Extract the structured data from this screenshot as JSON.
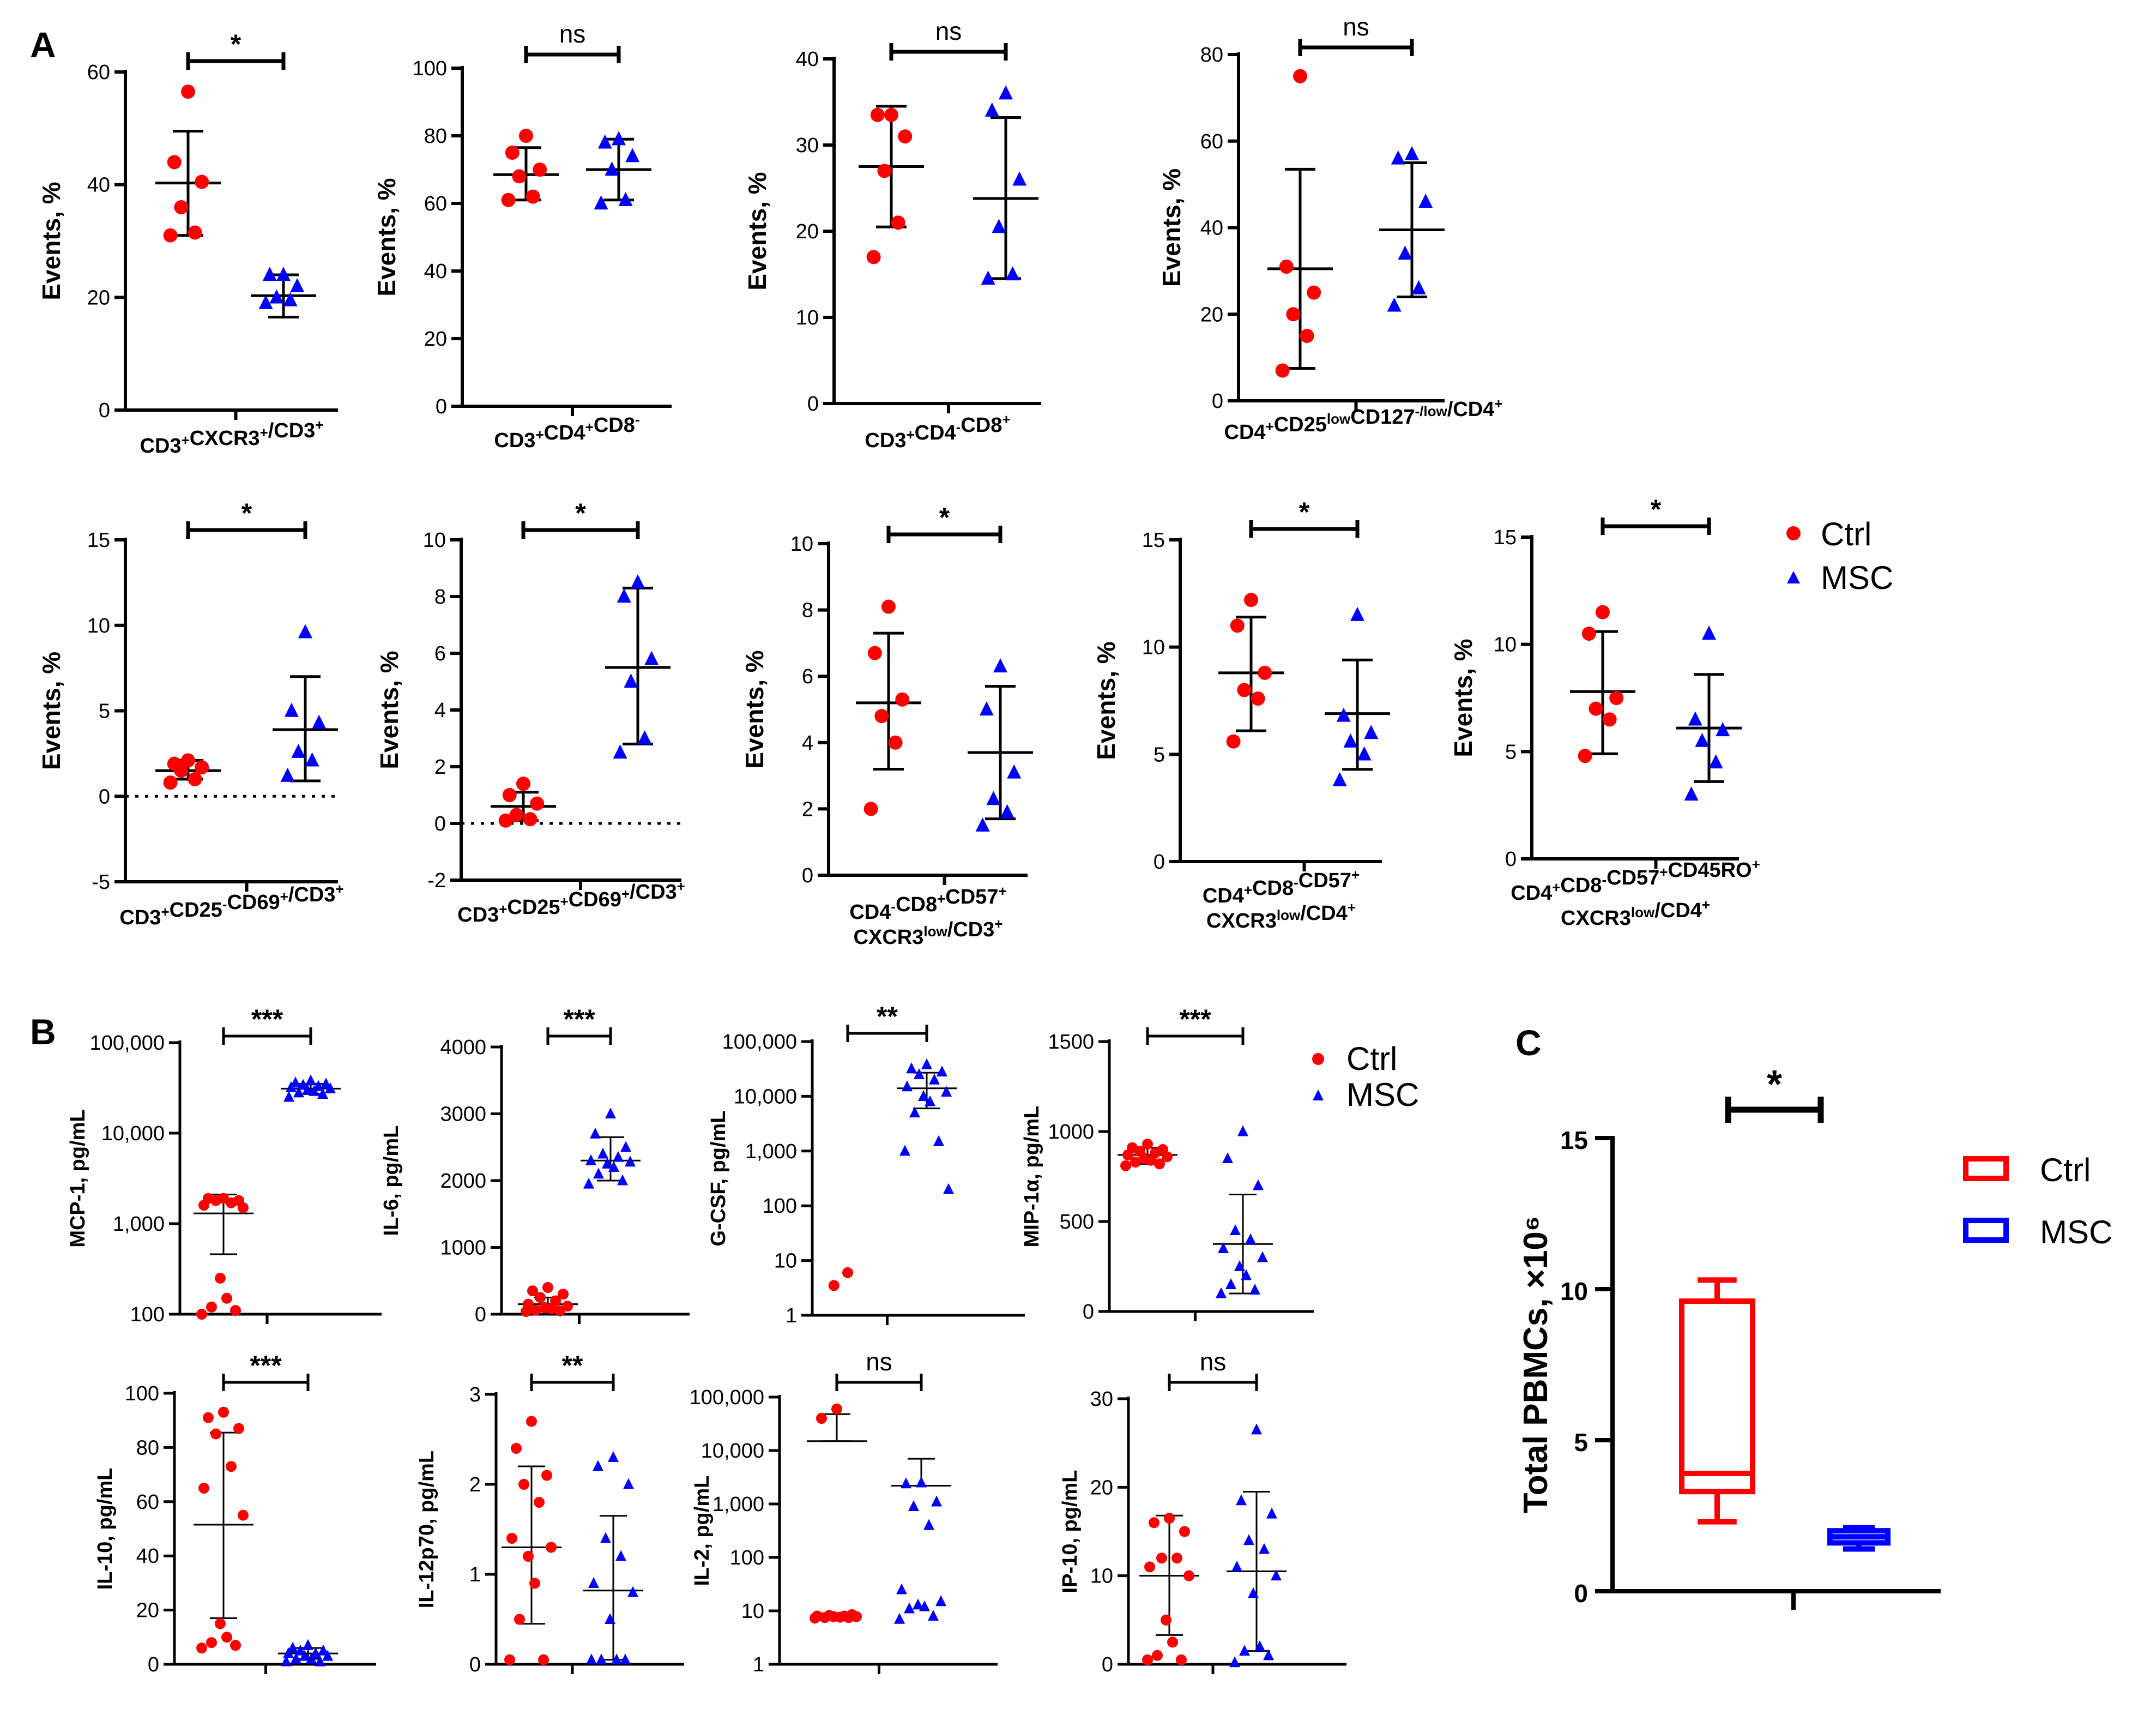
{
  "panel_labels": [
    "A",
    "B",
    "C"
  ],
  "chart_data": [
    {
      "panel": "A",
      "type": "scatter",
      "ylabel": "Events, %",
      "xlabel": "CD3+CXCR3+/CD3+",
      "significance": "*",
      "ylim": [
        0,
        60
      ],
      "yticks": [
        0,
        20,
        40,
        60
      ],
      "ytick_labels": [
        "0",
        "20",
        "40",
        "60"
      ],
      "series": [
        {
          "name": "Ctrl",
          "values": [
            56.5,
            44,
            40.5,
            36,
            31.5,
            31
          ],
          "mean": 40.3,
          "sd_low": 31,
          "sd_high": 49.5
        },
        {
          "name": "MSC",
          "values": [
            24,
            24,
            22,
            20,
            19.5,
            19
          ],
          "mean": 20.3,
          "sd_low": 16.5,
          "sd_high": 24
        }
      ]
    },
    {
      "panel": "A",
      "type": "scatter",
      "ylabel": "Events, %",
      "xlabel": "CD3+CD4+CD8-",
      "significance": "ns",
      "ylim": [
        0,
        100
      ],
      "yticks": [
        0,
        20,
        40,
        60,
        80,
        100
      ],
      "ytick_labels": [
        "0",
        "20",
        "40",
        "60",
        "80",
        "100"
      ],
      "series": [
        {
          "name": "Ctrl",
          "values": [
            80,
            75,
            70,
            68,
            62,
            61
          ],
          "mean": 68.5,
          "sd_low": 61,
          "sd_high": 76.5
        },
        {
          "name": "MSC",
          "values": [
            79,
            78,
            74,
            70,
            61,
            60
          ],
          "mean": 70,
          "sd_low": 61,
          "sd_high": 79
        }
      ]
    },
    {
      "panel": "A",
      "type": "scatter",
      "ylabel": "Events, %",
      "xlabel": "CD3+CD4-CD8+",
      "significance": "ns",
      "ylim": [
        0,
        40
      ],
      "yticks": [
        0,
        10,
        20,
        30,
        40
      ],
      "ytick_labels": [
        "0",
        "10",
        "20",
        "30",
        "40"
      ],
      "series": [
        {
          "name": "Ctrl",
          "values": [
            33.5,
            33.5,
            31,
            27,
            21,
            17
          ],
          "mean": 27.5,
          "sd_low": 20.5,
          "sd_high": 34.5
        },
        {
          "name": "MSC",
          "values": [
            36,
            34,
            26,
            20.5,
            15,
            14.5
          ],
          "mean": 23.8,
          "sd_low": 14.5,
          "sd_high": 33.2
        }
      ]
    },
    {
      "panel": "A",
      "type": "scatter",
      "ylabel": "Events, %",
      "xlabel": "CD4+CD25lowCD127-/low/CD4+",
      "significance": "ns",
      "ylim": [
        0,
        80
      ],
      "yticks": [
        0,
        20,
        40,
        60,
        80
      ],
      "ytick_labels": [
        "0",
        "20",
        "40",
        "60",
        "80"
      ],
      "series": [
        {
          "name": "Ctrl",
          "values": [
            75,
            31,
            25,
            20,
            15,
            7
          ],
          "mean": 30.5,
          "sd_low": 7.5,
          "sd_high": 53.5
        },
        {
          "name": "MSC",
          "values": [
            57,
            56,
            46,
            34,
            26,
            22
          ],
          "mean": 39.5,
          "sd_low": 24,
          "sd_high": 55
        }
      ]
    },
    {
      "panel": "A",
      "type": "scatter",
      "ylabel": "Events, %",
      "xlabel": "CD3+CD25-CD69+/CD3+",
      "significance": "*",
      "ylim": [
        -5,
        15
      ],
      "yticks": [
        -5,
        0,
        5,
        10,
        15
      ],
      "ytick_labels": [
        "-5",
        "0",
        "5",
        "10",
        "15"
      ],
      "zero_line": true,
      "series": [
        {
          "name": "Ctrl",
          "values": [
            2.1,
            1.9,
            1.7,
            1.5,
            1.0,
            0.8
          ],
          "mean": 1.5,
          "sd_low": 1.0,
          "sd_high": 2.1
        },
        {
          "name": "MSC",
          "values": [
            9.6,
            5.0,
            4.3,
            2.6,
            2.1,
            1.2
          ],
          "mean": 3.9,
          "sd_low": 0.9,
          "sd_high": 7.0
        }
      ]
    },
    {
      "panel": "A",
      "type": "scatter",
      "ylabel": "Events, %",
      "xlabel": "CD3+CD25+CD69+/CD3+",
      "significance": "*",
      "ylim": [
        -2,
        10
      ],
      "yticks": [
        -2,
        0,
        2,
        4,
        6,
        8,
        10
      ],
      "ytick_labels": [
        "-2",
        "0",
        "2",
        "4",
        "6",
        "8",
        "10"
      ],
      "zero_line": true,
      "series": [
        {
          "name": "Ctrl",
          "values": [
            1.4,
            1.0,
            0.7,
            0.3,
            0.15,
            0.1
          ],
          "mean": 0.6,
          "sd_low": 0.1,
          "sd_high": 1.1
        },
        {
          "name": "MSC",
          "values": [
            8.5,
            8.0,
            5.8,
            5.0,
            3.0,
            2.5
          ],
          "mean": 5.5,
          "sd_low": 2.8,
          "sd_high": 8.3
        }
      ]
    },
    {
      "panel": "A",
      "type": "scatter",
      "ylabel": "Events, %",
      "xlabel": "CD4-CD8+CD57+ CXCR3low/CD3+",
      "significance": "*",
      "ylim": [
        0,
        10
      ],
      "yticks": [
        0,
        2,
        4,
        6,
        8,
        10
      ],
      "ytick_labels": [
        "0",
        "2",
        "4",
        "6",
        "8",
        "10"
      ],
      "series": [
        {
          "name": "Ctrl",
          "values": [
            8.1,
            6.7,
            5.3,
            4.8,
            4.0,
            2.0
          ],
          "mean": 5.2,
          "sd_low": 3.2,
          "sd_high": 7.3
        },
        {
          "name": "MSC",
          "values": [
            6.3,
            5.0,
            3.1,
            2.3,
            1.9,
            1.5
          ],
          "mean": 3.7,
          "sd_low": 1.7,
          "sd_high": 5.7
        }
      ]
    },
    {
      "panel": "A",
      "type": "scatter",
      "ylabel": "Events, %",
      "xlabel": "CD4+CD8-CD57+ CXCR3low/CD4+",
      "significance": "*",
      "ylim": [
        0,
        15
      ],
      "yticks": [
        0,
        5,
        10,
        15
      ],
      "ytick_labels": [
        "0",
        "5",
        "10",
        "15"
      ],
      "series": [
        {
          "name": "Ctrl",
          "values": [
            12.2,
            11.0,
            8.8,
            8.0,
            7.6,
            5.6
          ],
          "mean": 8.8,
          "sd_low": 6.1,
          "sd_high": 11.4
        },
        {
          "name": "MSC",
          "values": [
            11.5,
            6.8,
            6.0,
            5.6,
            5.0,
            3.8
          ],
          "mean": 6.9,
          "sd_low": 4.3,
          "sd_high": 9.4
        }
      ]
    },
    {
      "panel": "A",
      "type": "scatter",
      "ylabel": "Events, %",
      "xlabel": "CD4+CD8-CD57+CD45RO+ CXCR3low/CD4+",
      "significance": "*",
      "ylim": [
        0,
        15
      ],
      "yticks": [
        0,
        5,
        10,
        15
      ],
      "ytick_labels": [
        "0",
        "5",
        "10",
        "15"
      ],
      "series": [
        {
          "name": "Ctrl",
          "values": [
            11.5,
            10.5,
            7.5,
            7.0,
            6.5,
            4.8
          ],
          "mean": 7.8,
          "sd_low": 4.9,
          "sd_high": 10.6
        },
        {
          "name": "MSC",
          "values": [
            10.5,
            6.5,
            6.0,
            5.5,
            4.5,
            3.0
          ],
          "mean": 6.1,
          "sd_low": 3.6,
          "sd_high": 8.6
        }
      ]
    },
    {
      "panel": "B",
      "type": "scatter",
      "ylabel": "MCP-1, pg/mL",
      "significance": "***",
      "log": true,
      "ylim": [
        100,
        100000
      ],
      "yticks": [
        100,
        1000,
        10000,
        100000
      ],
      "ytick_labels": [
        "100",
        "1,000",
        "10,000",
        "100,000"
      ],
      "series": [
        {
          "name": "Ctrl",
          "values": [
            1900,
            1900,
            1800,
            1800,
            1700,
            1600,
            1500,
            250,
            150,
            120,
            110,
            100
          ],
          "mean": 1300,
          "sd_low": 460,
          "sd_high": 2100
        },
        {
          "name": "MSC",
          "values": [
            38000,
            36000,
            35000,
            34000,
            33000,
            32000,
            31000,
            30000,
            29000,
            28000,
            27000,
            25000
          ],
          "mean": 31000,
          "sd_low": 27000,
          "sd_high": 35000
        }
      ]
    },
    {
      "panel": "B",
      "type": "scatter",
      "ylabel": "IL-6, pg/mL",
      "significance": "***",
      "ylim": [
        0,
        4000
      ],
      "yticks": [
        0,
        1000,
        2000,
        3000,
        4000
      ],
      "ytick_labels": [
        "0",
        "1000",
        "2000",
        "3000",
        "4000"
      ],
      "series": [
        {
          "name": "Ctrl",
          "values": [
            400,
            350,
            300,
            250,
            200,
            150,
            120,
            100,
            80,
            60,
            50,
            40
          ],
          "mean": 150,
          "sd_low": 50,
          "sd_high": 250
        },
        {
          "name": "MSC",
          "values": [
            3000,
            2700,
            2500,
            2400,
            2350,
            2300,
            2280,
            2250,
            2200,
            2100,
            2000,
            1950
          ],
          "mean": 2300,
          "sd_low": 2000,
          "sd_high": 2650
        }
      ]
    },
    {
      "panel": "B",
      "type": "scatter",
      "ylabel": "G-CSF, pg/mL",
      "significance": "**",
      "log": true,
      "ylim": [
        1,
        100000
      ],
      "yticks": [
        1,
        10,
        100,
        1000,
        10000,
        100000
      ],
      "ytick_labels": [
        "1",
        "10",
        "100",
        "1,000",
        "10,000",
        "100,000"
      ],
      "series": [
        {
          "name": "Ctrl",
          "values": [
            6,
            3.5
          ]
        },
        {
          "name": "MSC",
          "values": [
            38000,
            32000,
            28000,
            25000,
            20000,
            15000,
            12000,
            10000,
            8000,
            5000,
            1500,
            1000,
            200
          ],
          "mean": 14000,
          "sd_low": 6000,
          "sd_high": 27000
        }
      ]
    },
    {
      "panel": "B",
      "type": "scatter",
      "ylabel": "MIP-1α, pg/mL",
      "significance": "***",
      "ylim": [
        0,
        1500
      ],
      "yticks": [
        0,
        500,
        1000,
        1500
      ],
      "ytick_labels": [
        "0",
        "500",
        "1000",
        "1500"
      ],
      "series": [
        {
          "name": "Ctrl",
          "values": [
            930,
            910,
            900,
            890,
            880,
            870,
            860,
            850,
            840,
            830,
            820,
            810
          ],
          "mean": 870,
          "sd_low": 820,
          "sd_high": 910
        },
        {
          "name": "MSC",
          "values": [
            1000,
            850,
            700,
            450,
            400,
            350,
            300,
            250,
            200,
            150,
            120,
            100
          ],
          "mean": 375,
          "sd_low": 100,
          "sd_high": 650
        }
      ]
    },
    {
      "panel": "B",
      "type": "scatter",
      "ylabel": "IL-10, pg/mL",
      "significance": "***",
      "ylim": [
        0,
        100
      ],
      "yticks": [
        0,
        20,
        40,
        60,
        80,
        100
      ],
      "ytick_labels": [
        "0",
        "20",
        "40",
        "60",
        "80",
        "100"
      ],
      "series": [
        {
          "name": "Ctrl",
          "values": [
            93,
            91,
            87,
            85,
            73,
            65,
            55,
            15,
            10,
            8,
            7,
            6
          ],
          "mean": 51.5,
          "sd_low": 17,
          "sd_high": 85.5
        },
        {
          "name": "MSC",
          "values": [
            7,
            6,
            5,
            5,
            4,
            4,
            3,
            3,
            2,
            2,
            1,
            1
          ],
          "mean": 4,
          "sd_low": 2,
          "sd_high": 6
        }
      ]
    },
    {
      "panel": "B",
      "type": "scatter",
      "ylabel": "IL-12p70, pg/mL",
      "significance": "**",
      "ylim": [
        0,
        3
      ],
      "yticks": [
        0,
        1,
        2,
        3
      ],
      "ytick_labels": [
        "0",
        "1",
        "2",
        "3"
      ],
      "series": [
        {
          "name": "Ctrl",
          "values": [
            2.7,
            2.4,
            2.1,
            2.0,
            1.8,
            1.4,
            1.3,
            1.2,
            0.9,
            0.5,
            0.05,
            0.05
          ],
          "mean": 1.3,
          "sd_low": 0.45,
          "sd_high": 2.2
        },
        {
          "name": "MSC",
          "values": [
            2.3,
            2.2,
            2.0,
            1.4,
            1.2,
            0.9,
            0.8,
            0.5,
            0.05,
            0.05,
            0.05,
            0.05
          ],
          "mean": 0.82,
          "sd_low": 0.05,
          "sd_high": 1.65
        }
      ]
    },
    {
      "panel": "B",
      "type": "scatter",
      "ylabel": "IL-2, pg/mL",
      "significance": "ns",
      "log": true,
      "ylim": [
        1,
        100000
      ],
      "yticks": [
        1,
        10,
        100,
        1000,
        10000,
        100000
      ],
      "ytick_labels": [
        "1",
        "10",
        "100",
        "1,000",
        "10,000",
        "100,000"
      ],
      "series": [
        {
          "name": "Ctrl",
          "values": [
            60000,
            40000,
            8.5,
            8.2,
            8.0,
            8.0,
            7.8,
            7.8,
            7.6,
            7.5,
            7.5,
            7.3
          ],
          "mean": 15000,
          "sd_low": 15000,
          "sd_high": 48000
        },
        {
          "name": "MSC",
          "values": [
            2500,
            2400,
            1100,
            900,
            400,
            25,
            15,
            13,
            12,
            11,
            8,
            7
          ],
          "mean": 2200,
          "sd_low": 2200,
          "sd_high": 7000
        }
      ]
    },
    {
      "panel": "B",
      "type": "scatter",
      "ylabel": "IP-10, pg/mL",
      "significance": "ns",
      "ylim": [
        0,
        30
      ],
      "yticks": [
        0,
        10,
        20,
        30
      ],
      "ytick_labels": [
        "0",
        "10",
        "20",
        "30"
      ],
      "series": [
        {
          "name": "Ctrl",
          "values": [
            16.5,
            16,
            15,
            12,
            12,
            11,
            10,
            5,
            2.5,
            1,
            0.5,
            0.5
          ],
          "mean": 10,
          "sd_low": 3.3,
          "sd_high": 16.8
        },
        {
          "name": "MSC",
          "values": [
            26.5,
            18.5,
            17,
            14,
            13,
            11,
            10,
            8,
            2,
            1.5,
            1,
            0.2
          ],
          "mean": 10.5,
          "sd_low": 1.5,
          "sd_high": 19.5
        }
      ]
    },
    {
      "panel": "C",
      "type": "box",
      "ylabel": "Total PBMCs, ×10⁶",
      "significance": "*",
      "ylim": [
        0,
        15
      ],
      "yticks": [
        0,
        5,
        10,
        15
      ],
      "ytick_labels": [
        "0",
        "5",
        "10",
        "15"
      ],
      "series": [
        {
          "name": "Ctrl",
          "min": 2.3,
          "q1": 3.3,
          "median": 3.9,
          "q3": 9.6,
          "max": 10.3
        },
        {
          "name": "MSC",
          "min": 1.4,
          "q1": 1.6,
          "median": 1.8,
          "q3": 2.0,
          "max": 2.1
        }
      ]
    }
  ],
  "legends": [
    {
      "items": [
        {
          "name": "Ctrl",
          "marker": "circle"
        },
        {
          "name": "MSC",
          "marker": "triangle"
        }
      ]
    },
    {
      "items": [
        {
          "name": "Ctrl",
          "marker": "circle"
        },
        {
          "name": "MSC",
          "marker": "triangle"
        }
      ]
    },
    {
      "items": [
        {
          "name": "Ctrl",
          "marker": "box"
        },
        {
          "name": "MSC",
          "marker": "box"
        }
      ]
    }
  ],
  "colors": {
    "ctrl": "#ff0000",
    "msc": "#0000ff",
    "axis": "#000000"
  }
}
